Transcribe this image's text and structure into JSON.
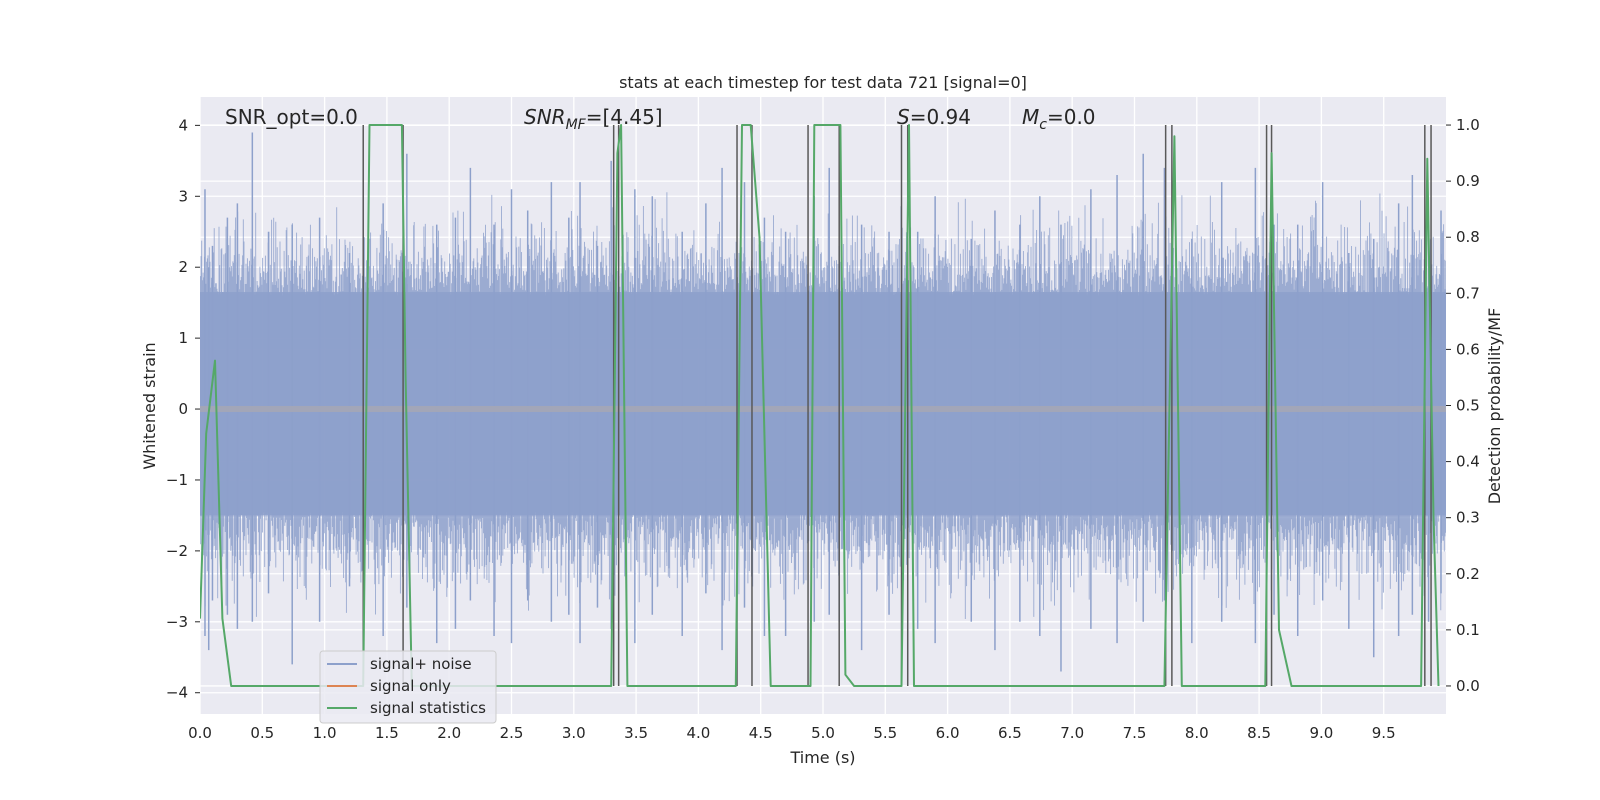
{
  "chart_data": {
    "type": "line",
    "title": "stats at each timestep for test data 721 [signal=0]",
    "xlabel": "Time (s)",
    "ylabel": "Whitened strain",
    "y2label": "Detection probability/MF",
    "xlim": [
      0.0,
      10.0
    ],
    "ylim": [
      -4.3,
      4.4
    ],
    "y2lim": [
      -0.05,
      1.05
    ],
    "grid": true,
    "legend_position": "lower-left",
    "x_ticks": [
      "0.0",
      "0.5",
      "1.0",
      "1.5",
      "2.0",
      "2.5",
      "3.0",
      "3.5",
      "4.0",
      "4.5",
      "5.0",
      "5.5",
      "6.0",
      "6.5",
      "7.0",
      "7.5",
      "8.0",
      "8.5",
      "9.0",
      "9.5"
    ],
    "x_tick_values": [
      0.0,
      0.5,
      1.0,
      1.5,
      2.0,
      2.5,
      3.0,
      3.5,
      4.0,
      4.5,
      5.0,
      5.5,
      6.0,
      6.5,
      7.0,
      7.5,
      8.0,
      8.5,
      9.0,
      9.5
    ],
    "y_ticks": [
      "4",
      "3",
      "2",
      "1",
      "0",
      "−1",
      "−2",
      "−3",
      "−4"
    ],
    "y_tick_values": [
      4,
      3,
      2,
      1,
      0,
      -1,
      -2,
      -3,
      -4
    ],
    "y2_ticks": [
      "1.0",
      "0.9",
      "0.8",
      "0.7",
      "0.6",
      "0.5",
      "0.4",
      "0.3",
      "0.2",
      "0.1",
      "0.0"
    ],
    "y2_tick_values": [
      1.0,
      0.9,
      0.8,
      0.7,
      0.6,
      0.5,
      0.4,
      0.3,
      0.2,
      0.1,
      0.0
    ],
    "annotations": {
      "snr_opt": "SNR_opt=0.0",
      "snr_mf_sym": "SNR",
      "snr_mf_sub": "MF",
      "snr_mf_val": "=[4.45]",
      "s_sym": "S",
      "s_val": "=0.94",
      "mc_sym": "M",
      "mc_sub": "c",
      "mc_val": "=0.0"
    },
    "series": [
      {
        "name": "signal+ noise",
        "color": "#8da0cb",
        "axis": "left",
        "style": "noise-band",
        "spike_samples": [
          0.04,
          0.07,
          0.1,
          0.22,
          0.3,
          0.42,
          0.55,
          0.74,
          0.96,
          1.2,
          1.47,
          1.66,
          1.9,
          2.05,
          2.17,
          2.36,
          2.5,
          2.63,
          2.82,
          2.96,
          3.05,
          3.19,
          3.3,
          3.49,
          3.63,
          3.87,
          4.06,
          4.19,
          4.37,
          4.53,
          4.7,
          4.93,
          5.05,
          5.13,
          5.31,
          5.53,
          5.76,
          5.9,
          6.19,
          6.38,
          6.58,
          6.74,
          6.91,
          7.15,
          7.36,
          7.57,
          7.74,
          7.96,
          8.2,
          8.47,
          8.62,
          8.81,
          9.01,
          9.22,
          9.42,
          9.62,
          9.73,
          9.86,
          9.96
        ],
        "spike_tops": [
          3.1,
          2.0,
          2.3,
          2.7,
          2.9,
          3.9,
          2.5,
          2.6,
          2.7,
          2.2,
          2.9,
          3.6,
          2.6,
          2.7,
          3.4,
          2.6,
          3.1,
          2.8,
          3.2,
          2.7,
          3.2,
          2.3,
          3.5,
          3.1,
          3.0,
          2.5,
          2.9,
          3.4,
          3.2,
          2.7,
          2.5,
          3.0,
          3.4,
          2.3,
          2.6,
          2.5,
          2.5,
          3.0,
          2.4,
          2.8,
          2.6,
          3.0,
          2.6,
          3.1,
          3.3,
          3.6,
          3.4,
          2.4,
          3.2,
          3.4,
          2.6,
          2.6,
          3.2,
          2.2,
          2.4,
          2.9,
          3.3,
          2.6,
          2.8
        ],
        "spike_bottoms": [
          -3.2,
          -3.4,
          -2.7,
          -2.9,
          -3.1,
          -3.0,
          -2.6,
          -3.6,
          -3.0,
          -2.5,
          -3.2,
          -2.8,
          -3.3,
          -3.1,
          -2.7,
          -3.2,
          -3.3,
          -2.7,
          -3.0,
          -2.9,
          -3.3,
          -2.8,
          -3.1,
          -3.3,
          -2.9,
          -3.2,
          -2.6,
          -3.4,
          -2.8,
          -3.2,
          -3.2,
          -3.0,
          -2.9,
          -3.0,
          -3.4,
          -2.9,
          -3.1,
          -3.3,
          -3.0,
          -3.4,
          -3.0,
          -3.2,
          -3.7,
          -3.1,
          -3.3,
          -3.0,
          -2.7,
          -3.3,
          -3.0,
          -3.3,
          -2.9,
          -3.2,
          -2.7,
          -3.1,
          -3.5,
          -3.2,
          -2.9,
          -3.0,
          -2.6
        ],
        "band_top": 1.65,
        "band_bottom": -1.5
      },
      {
        "name": "signal only",
        "color": "#dd8452",
        "axis": "left",
        "x": [
          0.0,
          10.0
        ],
        "y": [
          0.0,
          0.0
        ]
      },
      {
        "name": "signal statistics",
        "color": "#55a868",
        "axis": "right",
        "x": [
          0.0,
          0.05,
          0.12,
          0.18,
          0.25,
          1.31,
          1.36,
          1.62,
          1.65,
          1.7,
          3.3,
          3.35,
          3.38,
          3.43,
          4.3,
          4.35,
          4.42,
          4.49,
          4.58,
          4.9,
          4.93,
          5.14,
          5.18,
          5.25,
          5.63,
          5.69,
          5.73,
          7.74,
          7.82,
          7.88,
          8.55,
          8.6,
          8.66,
          8.76,
          9.8,
          9.85,
          9.9,
          9.94
        ],
        "y": [
          0.12,
          0.45,
          0.58,
          0.12,
          0.0,
          0.0,
          1.0,
          1.0,
          0.55,
          0.0,
          0.0,
          0.95,
          1.0,
          0.0,
          0.0,
          1.0,
          1.0,
          0.8,
          0.0,
          0.0,
          1.0,
          1.0,
          0.02,
          0.0,
          0.0,
          1.0,
          0.0,
          0.0,
          0.98,
          0.0,
          0.0,
          0.95,
          0.1,
          0.0,
          0.0,
          0.94,
          0.3,
          0.0
        ]
      }
    ],
    "vlines": [
      1.31,
      1.63,
      3.32,
      3.36,
      4.31,
      4.43,
      4.88,
      5.13,
      5.63,
      5.68,
      7.75,
      7.8,
      8.56,
      8.6,
      9.83,
      9.88
    ],
    "vline_color": "#595959"
  }
}
